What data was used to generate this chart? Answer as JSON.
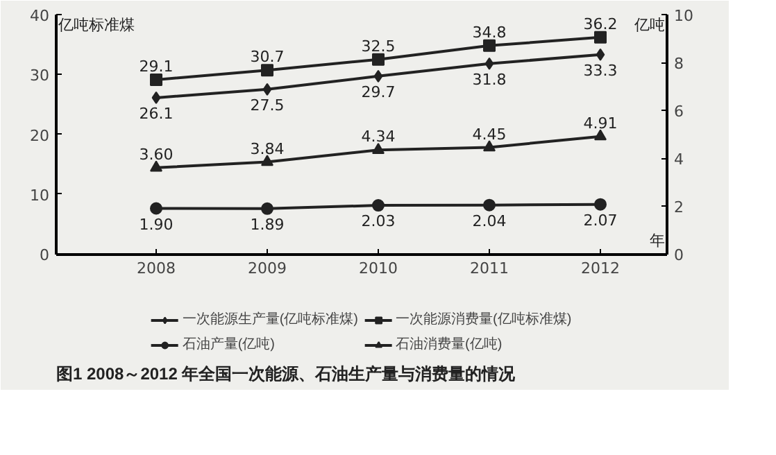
{
  "chart_data": {
    "type": "line",
    "title": "图1  2008～2012 年全国一次能源、石油生产量与消费量的情况",
    "xlabel": "年",
    "ylabel": "亿吨标准煤",
    "y2label": "亿吨",
    "categories": [
      "2008",
      "2009",
      "2010",
      "2011",
      "2012"
    ],
    "ylim": [
      0,
      40
    ],
    "yticks": [
      0,
      10,
      20,
      30,
      40
    ],
    "y2lim": [
      0,
      10
    ],
    "y2ticks": [
      0,
      2,
      4,
      6,
      8,
      10
    ],
    "grid": false,
    "legend": "bottom",
    "data_labels": true,
    "line_style": "solid",
    "series": [
      {
        "name": "一次能源生产量(亿吨标准煤)",
        "color": "#222222",
        "marker": "diamond",
        "values": [
          26.1,
          27.5,
          29.7,
          31.8,
          33.3
        ],
        "value_labels": [
          "26.1",
          "27.5",
          "29.7",
          "31.8",
          "33.3"
        ]
      },
      {
        "name": "一次能源消费量(亿吨标准煤)",
        "color": "#222222",
        "marker": "square",
        "values": [
          29.1,
          30.7,
          32.5,
          34.8,
          36.2
        ],
        "value_labels": [
          "29.1",
          "30.7",
          "32.5",
          "34.8",
          "36.2"
        ]
      },
      {
        "name": "石油产量(亿吨)",
        "color": "#222222",
        "marker": "circle",
        "axis": "y2",
        "values": [
          1.9,
          1.89,
          2.03,
          2.04,
          2.07
        ],
        "value_labels": [
          "1.90",
          "1.89",
          "2.03",
          "2.04",
          "2.07"
        ]
      },
      {
        "name": "石油消费量(亿吨)",
        "color": "#222222",
        "marker": "triangle",
        "axis": "y2",
        "values": [
          3.6,
          3.84,
          4.34,
          4.45,
          4.91
        ],
        "value_labels": [
          "3.60",
          "3.84",
          "4.34",
          "4.45",
          "4.91"
        ]
      }
    ]
  }
}
